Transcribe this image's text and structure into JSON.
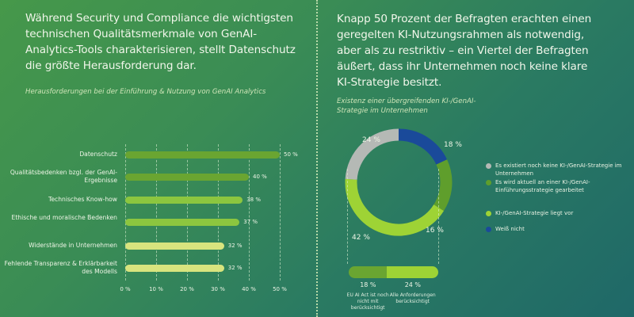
{
  "left": {
    "headline": "Während Security und Compliance die wichtigsten technischen Qualitätsmerkmale von GenAI-Analytics-Tools charakterisieren, stellt Datenschutz die größte Herausforderung dar.",
    "subtitle": "Herausforderungen bei der Einführung & Nutzung von GenAI Analytics"
  },
  "right": {
    "headline": "Knapp 50 Prozent der Befragten erachten einen geregelten KI-Nutzungsrahmen als notwendig, aber als zu restriktiv – ein Viertel der Befragten äußert, dass ihr Unternehmen noch keine klare KI-Strategie besitzt.",
    "subtitle": "Existenz einer übergreifenden KI-/GenAI-Strategie im Unternehmen"
  },
  "chart_data": [
    {
      "type": "bar",
      "orientation": "horizontal",
      "categories": [
        "Datenschutz",
        "Qualitätsbedenken bzgl. der GenAI-Ergebnisse",
        "Technisches Know-how",
        "Ethische und moralische Bedenken",
        "Widerstände in Unternehmen",
        "Fehlende Transparenz & Erklärbarkeit des Modells"
      ],
      "values": [
        50,
        40,
        38,
        37,
        32,
        32
      ],
      "value_labels": [
        "50 %",
        "40 %",
        "38 %",
        "37 %",
        "32 %",
        "32 %"
      ],
      "colors": [
        "#6aa531",
        "#6aa531",
        "#8cc63f",
        "#8cc63f",
        "#d8e47e",
        "#d8e47e"
      ],
      "xlim": [
        0,
        50
      ],
      "xticks": [
        "0 %",
        "10 %",
        "20 %",
        "30 %",
        "40 %",
        "50 %"
      ],
      "grid": true
    },
    {
      "type": "pie",
      "variant": "donut",
      "slices": [
        {
          "label": "Weiß nicht",
          "value": 18,
          "value_label": "18 %",
          "color": "#1a4a9a"
        },
        {
          "label": "Es wird aktuell an einer KI-/GenAI-Einführungsstrategie gearbeitet",
          "value": 16,
          "value_label": "16 %",
          "color": "#5f9e2c"
        },
        {
          "label": "KI-/GenAI-Strategie liegt vor",
          "value": 42,
          "value_label": "42 %",
          "color": "#9ed335"
        },
        {
          "label": "Es existiert noch keine KI-/GenAI-Strategie im Unternehmen",
          "value": 24,
          "value_label": "24 %",
          "color": "#b5b9b5"
        }
      ],
      "legend_order": [
        3,
        1,
        2,
        0
      ],
      "legend": "right",
      "breakdown": {
        "of": "KI-/GenAI-Strategie liegt vor",
        "parts": [
          {
            "value": 18,
            "value_label": "18 %",
            "label": "EU AI Act ist noch nicht mit berücksichtigt",
            "color": "#6aa531"
          },
          {
            "value": 24,
            "value_label": "24 %",
            "label": "Alle Anforderungen berücksichtigt",
            "color": "#9ed335"
          }
        ]
      }
    }
  ]
}
